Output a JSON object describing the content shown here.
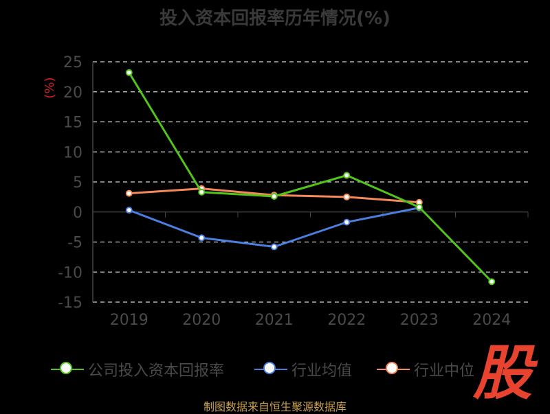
{
  "chart_data": {
    "type": "line",
    "title": "投入资本回报率历年情况(%)",
    "ylabel": "(%)",
    "categories": [
      "2019",
      "2020",
      "2021",
      "2022",
      "2023",
      "2024"
    ],
    "ylim": [
      -15,
      25
    ],
    "yticks": [
      "25",
      "20",
      "15",
      "10",
      "5",
      "0",
      "-5",
      "-10",
      "-15"
    ],
    "grid": true,
    "legend_position": "bottom",
    "series": [
      {
        "name": "公司投入资本回报率",
        "color": "#52c41a",
        "values": [
          23.2,
          3.3,
          2.6,
          6.1,
          0.8,
          -11.6
        ]
      },
      {
        "name": "行业均值",
        "color": "#4a7fe0",
        "values": [
          0.3,
          -4.3,
          -5.8,
          -1.7,
          0.7,
          null
        ]
      },
      {
        "name": "行业中位",
        "color": "#f5895a",
        "values": [
          3.1,
          3.9,
          2.8,
          2.5,
          1.6,
          null
        ]
      }
    ]
  },
  "source_text": "制图数据来自恒生聚源数据库",
  "logo_text": "股"
}
